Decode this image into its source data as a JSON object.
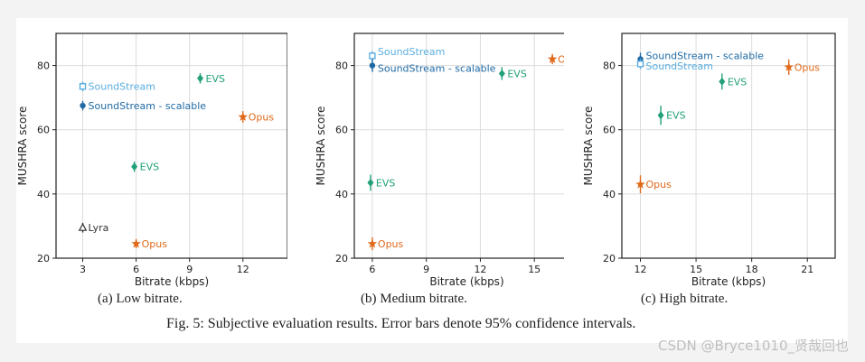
{
  "figure": {
    "subcaptions": [
      "(a) Low bitrate.",
      "(b) Medium bitrate.",
      "(c) High bitrate."
    ],
    "caption": "Fig. 5: Subjective evaluation results. Error bars denote 95% confidence intervals."
  },
  "watermark": "CSDN @Bryce1010_贤哉回也",
  "colors": {
    "SoundStream": "#5aaee0",
    "SoundStream - scalable": "#1f6aa5",
    "EVS": "#22a07a",
    "Opus": "#e06a1b",
    "Lyra": "#333333"
  },
  "chart_data": [
    {
      "type": "scatter",
      "grid": true,
      "xlabel": "Bitrate (kbps)",
      "ylabel": "MUSHRA score",
      "xlim": [
        1.5,
        14.5
      ],
      "ylim": [
        20,
        90
      ],
      "xticks": [
        3,
        6,
        9,
        12
      ],
      "yticks": [
        20,
        40,
        60,
        80
      ],
      "points": [
        {
          "label": "SoundStream",
          "x": 3,
          "y": 73.5,
          "err": 1.5,
          "marker": "square",
          "color": "#5aaee0"
        },
        {
          "label": "SoundStream - scalable",
          "x": 3,
          "y": 67.5,
          "err": 1.5,
          "marker": "circle",
          "color": "#1f6aa5"
        },
        {
          "label": "EVS",
          "x": 9.6,
          "y": 76,
          "err": 1.6,
          "marker": "diamond",
          "color": "#22a07a"
        },
        {
          "label": "EVS",
          "x": 5.9,
          "y": 48.5,
          "err": 1.6,
          "marker": "diamond",
          "color": "#22a07a"
        },
        {
          "label": "Opus",
          "x": 12,
          "y": 64,
          "err": 1.8,
          "marker": "star",
          "color": "#e06a1b"
        },
        {
          "label": "Opus",
          "x": 6,
          "y": 24.5,
          "err": 1.4,
          "marker": "star",
          "color": "#e06a1b"
        },
        {
          "label": "Lyra",
          "x": 3,
          "y": 29.5,
          "err": 1.5,
          "marker": "triangle",
          "color": "#333333"
        }
      ]
    },
    {
      "type": "scatter",
      "grid": true,
      "xlabel": "Bitrate (kbps)",
      "ylabel": "MUSHRA score",
      "xlim": [
        5,
        17.5
      ],
      "ylim": [
        20,
        90
      ],
      "xticks": [
        6,
        9,
        12,
        15
      ],
      "yticks": [
        20,
        40,
        60,
        80
      ],
      "points": [
        {
          "label": "SoundStream",
          "x": 6,
          "y": 83,
          "err": 1.5,
          "marker": "square",
          "color": "#5aaee0"
        },
        {
          "label": "SoundStream - scalable",
          "x": 6,
          "y": 80,
          "err": 2,
          "marker": "circle",
          "color": "#1f6aa5"
        },
        {
          "label": "EVS",
          "x": 13.2,
          "y": 77.5,
          "err": 2,
          "marker": "diamond",
          "color": "#22a07a"
        },
        {
          "label": "EVS",
          "x": 5.9,
          "y": 43.5,
          "err": 2.5,
          "marker": "diamond",
          "color": "#22a07a"
        },
        {
          "label": "Opus",
          "x": 16,
          "y": 82,
          "err": 1.6,
          "marker": "star",
          "color": "#e06a1b"
        },
        {
          "label": "Opus",
          "x": 6,
          "y": 24.5,
          "err": 2,
          "marker": "star",
          "color": "#e06a1b"
        }
      ]
    },
    {
      "type": "scatter",
      "grid": true,
      "xlabel": "Bitrate (kbps)",
      "ylabel": "MUSHRA score",
      "xlim": [
        11,
        22.5
      ],
      "ylim": [
        20,
        90
      ],
      "xticks": [
        12,
        15,
        18,
        21
      ],
      "yticks": [
        20,
        40,
        60,
        80
      ],
      "points": [
        {
          "label": "SoundStream - scalable",
          "x": 12,
          "y": 82,
          "err": 2,
          "marker": "circle",
          "color": "#1f6aa5"
        },
        {
          "label": "SoundStream",
          "x": 12,
          "y": 80.5,
          "err": 1.6,
          "marker": "square",
          "color": "#5aaee0"
        },
        {
          "label": "EVS",
          "x": 16.4,
          "y": 75,
          "err": 2.5,
          "marker": "diamond",
          "color": "#22a07a"
        },
        {
          "label": "EVS",
          "x": 13.1,
          "y": 64.5,
          "err": 3,
          "marker": "diamond",
          "color": "#22a07a"
        },
        {
          "label": "Opus",
          "x": 20,
          "y": 79.5,
          "err": 2.4,
          "marker": "star",
          "color": "#e06a1b"
        },
        {
          "label": "Opus",
          "x": 12,
          "y": 43,
          "err": 2.8,
          "marker": "star",
          "color": "#e06a1b"
        }
      ]
    }
  ]
}
